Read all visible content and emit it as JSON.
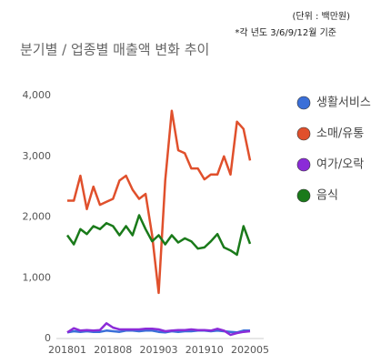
{
  "chart_data": {
    "type": "line",
    "title": "분기별 / 업종별 매출액 변화 추이",
    "unit_note": "(단위 : 백만원)",
    "note": "*각 년도 3/6/9/12월 기준",
    "categories": [
      "201801",
      null,
      null,
      null,
      null,
      null,
      null,
      "201808",
      null,
      null,
      null,
      null,
      null,
      null,
      "201903",
      null,
      null,
      null,
      null,
      null,
      null,
      "201910",
      null,
      null,
      null,
      null,
      null,
      null,
      "202005"
    ],
    "series": [
      {
        "name": "생활서비스",
        "color": "#3a6fd8",
        "values": [
          100,
          120,
          110,
          120,
          110,
          110,
          130,
          120,
          110,
          130,
          130,
          120,
          130,
          130,
          110,
          100,
          120,
          110,
          120,
          120,
          130,
          130,
          120,
          130,
          120,
          110,
          100,
          130,
          130
        ]
      },
      {
        "name": "소매/유통",
        "color": "#e0502c",
        "values": [
          2270,
          2270,
          2680,
          2130,
          2500,
          2200,
          2250,
          2300,
          2600,
          2680,
          2450,
          2300,
          2380,
          1700,
          750,
          2600,
          3750,
          3100,
          3050,
          2800,
          2800,
          2620,
          2700,
          2700,
          3000,
          2700,
          3570,
          3450,
          2930
        ]
      },
      {
        "name": "여가/오락",
        "color": "#8b2bd8",
        "values": [
          100,
          170,
          130,
          140,
          130,
          140,
          250,
          180,
          150,
          150,
          150,
          150,
          160,
          160,
          150,
          120,
          130,
          140,
          140,
          150,
          140,
          140,
          130,
          160,
          130,
          60,
          90,
          110,
          120
        ]
      },
      {
        "name": "음식",
        "color": "#1a7a1a",
        "values": [
          1700,
          1550,
          1800,
          1720,
          1850,
          1800,
          1900,
          1850,
          1700,
          1850,
          1700,
          2030,
          1800,
          1600,
          1700,
          1550,
          1700,
          1580,
          1650,
          1600,
          1480,
          1500,
          1600,
          1720,
          1500,
          1450,
          1380,
          1850,
          1560
        ]
      }
    ],
    "ylim": [
      0,
      4000
    ],
    "yticks": [
      0,
      {
        "value": 1000,
        "label": "1,000"
      },
      {
        "value": 2000,
        "label": "2,000"
      },
      {
        "value": 3000,
        "label": "3,000"
      },
      {
        "value": 4000,
        "label": "4,000"
      }
    ],
    "grid": false,
    "legend": "right"
  }
}
